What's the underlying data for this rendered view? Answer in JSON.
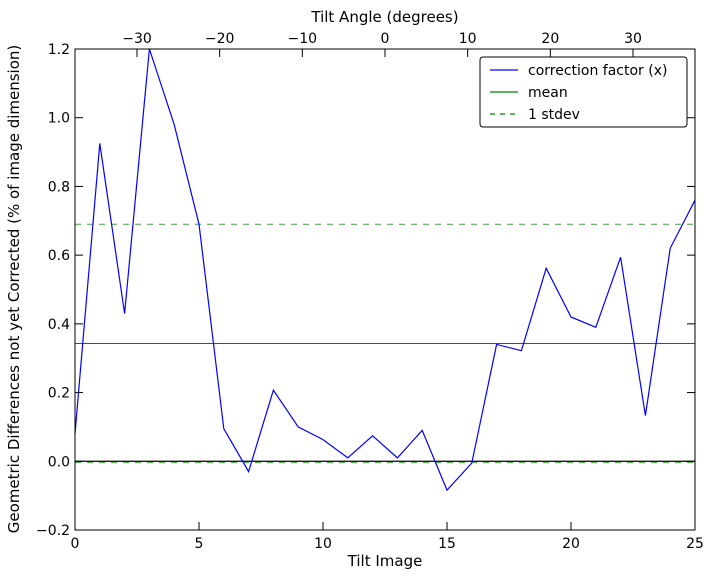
{
  "chart_data": {
    "type": "line",
    "xlabel": "Tilt Image",
    "ylabel": "Geometric Differences not yet Corrected (% of image dimension)",
    "x2label": "Tilt Angle (degrees)",
    "xlim": [
      0,
      25
    ],
    "ylim": [
      -0.2,
      1.2
    ],
    "x2lim": [
      -37.5,
      37.5
    ],
    "x_ticks": [
      0,
      5,
      10,
      15,
      20,
      25
    ],
    "y_ticks": [
      -0.2,
      0.0,
      0.2,
      0.4,
      0.6,
      0.8,
      1.0,
      1.2
    ],
    "x2_ticks": [
      -30,
      -20,
      -10,
      0,
      10,
      20,
      30
    ],
    "x_tick_labels": [
      "0",
      "5",
      "10",
      "15",
      "20",
      "25"
    ],
    "y_tick_labels": [
      "−0.2",
      "0.0",
      "0.2",
      "0.4",
      "0.6",
      "0.8",
      "1.0",
      "1.2"
    ],
    "x2_tick_labels": [
      "−30",
      "−20",
      "−10",
      "0",
      "10",
      "20",
      "30"
    ],
    "zero_line": 0.0,
    "legend_position": "top-right",
    "series": [
      {
        "name": "correction factor (x)",
        "style": "solid",
        "color": "#0000ff",
        "x": [
          0,
          1,
          2,
          3,
          4,
          5,
          6,
          7,
          8,
          9,
          10,
          11,
          12,
          13,
          14,
          15,
          16,
          17,
          18,
          19,
          20,
          21,
          22,
          23,
          24,
          25
        ],
        "y": [
          0.08,
          0.925,
          0.43,
          1.2,
          0.98,
          0.69,
          0.095,
          -0.03,
          0.207,
          0.1,
          0.063,
          0.01,
          0.074,
          0.01,
          0.09,
          -0.084,
          -0.005,
          0.34,
          0.322,
          0.562,
          0.42,
          0.39,
          0.594,
          0.133,
          0.62,
          0.76
        ]
      },
      {
        "name": "mean",
        "style": "solid",
        "color": "#008000",
        "value": 0.343
      },
      {
        "name": "1 stdev",
        "style": "dashed",
        "color": "#008000",
        "values": [
          0.69,
          -0.004
        ]
      }
    ]
  }
}
